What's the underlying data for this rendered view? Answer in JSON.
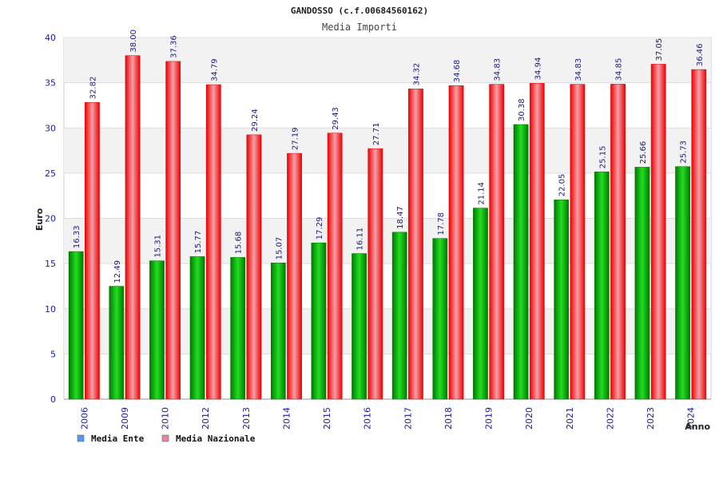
{
  "chart_data": {
    "type": "bar",
    "title": "GANDOSSO (c.f.00684560162)",
    "subtitle": "Media Importi",
    "xlabel": "Anno",
    "ylabel": "Euro",
    "ylim": [
      0,
      40
    ],
    "yticks": [
      0,
      5,
      10,
      15,
      20,
      25,
      30,
      35,
      40
    ],
    "grid": true,
    "legend_position": "bottom-left",
    "categories": [
      "2006",
      "2009",
      "2010",
      "2012",
      "2013",
      "2014",
      "2015",
      "2016",
      "2017",
      "2018",
      "2019",
      "2020",
      "2021",
      "2022",
      "2023",
      "2024"
    ],
    "series": [
      {
        "name": "Media Ente",
        "color": "#00aa00",
        "legend_color": "#5599ee",
        "values": [
          16.33,
          12.49,
          15.31,
          15.77,
          15.68,
          15.07,
          17.29,
          16.11,
          18.47,
          17.78,
          21.14,
          30.38,
          22.05,
          25.15,
          25.66,
          25.73
        ],
        "labels": [
          "16.33",
          "12.49",
          "15.31",
          "15.77",
          "15.68",
          "15.07",
          "17.29",
          "16.11",
          "18.47",
          "17.78",
          "21.14",
          "30.38",
          "22.05",
          "25.15",
          "25.66",
          "25.73"
        ]
      },
      {
        "name": "Media Nazionale",
        "color": "#ee1111",
        "legend_color": "#dd88aa",
        "values": [
          32.82,
          38.0,
          37.36,
          34.79,
          29.24,
          27.19,
          29.43,
          27.71,
          34.32,
          34.68,
          34.83,
          34.94,
          34.83,
          34.85,
          37.05,
          36.46
        ],
        "labels": [
          "32.82",
          "38.00",
          "37.36",
          "34.79",
          "29.24",
          "27.19",
          "29.43",
          "27.71",
          "34.32",
          "34.68",
          "34.83",
          "34.94",
          "34.83",
          "34.85",
          "37.05",
          "36.46"
        ]
      }
    ]
  }
}
